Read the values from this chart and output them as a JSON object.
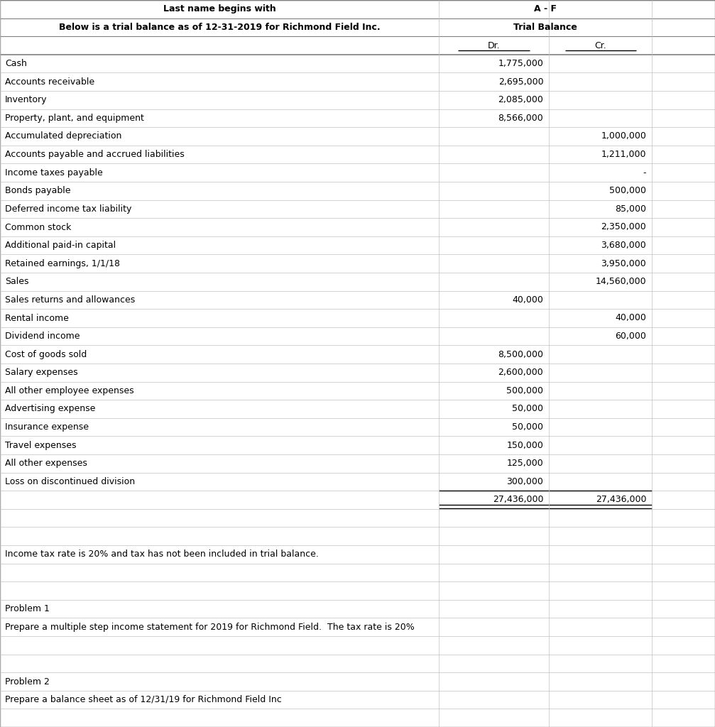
{
  "header_yellow_text": "Last name begins with",
  "header_af_text": "A - F",
  "header_desc_text": "Below is a trial balance as of 12-31-2019 for Richmond Field Inc.",
  "header_trial_balance": "Trial Balance",
  "col_dr": "Dr.",
  "col_cr": "Cr.",
  "rows": [
    {
      "label": "Cash",
      "dr": "1,775,000",
      "cr": ""
    },
    {
      "label": "Accounts receivable",
      "dr": "2,695,000",
      "cr": ""
    },
    {
      "label": "Inventory",
      "dr": "2,085,000",
      "cr": ""
    },
    {
      "label": "Property, plant, and equipment",
      "dr": "8,566,000",
      "cr": ""
    },
    {
      "label": "Accumulated depreciation",
      "dr": "",
      "cr": "1,000,000"
    },
    {
      "label": "Accounts payable and accrued liabilities",
      "dr": "",
      "cr": "1,211,000"
    },
    {
      "label": "Income taxes payable",
      "dr": "",
      "cr": "-"
    },
    {
      "label": "Bonds payable",
      "dr": "",
      "cr": "500,000"
    },
    {
      "label": "Deferred income tax liability",
      "dr": "",
      "cr": "85,000"
    },
    {
      "label": "Common stock",
      "dr": "",
      "cr": "2,350,000"
    },
    {
      "label": "Additional paid-in capital",
      "dr": "",
      "cr": "3,680,000"
    },
    {
      "label": "Retained earnings, 1/1/18",
      "dr": "",
      "cr": "3,950,000"
    },
    {
      "label": "Sales",
      "dr": "",
      "cr": "14,560,000"
    },
    {
      "label": "Sales returns and allowances",
      "dr": "40,000",
      "cr": ""
    },
    {
      "label": "Rental income",
      "dr": "",
      "cr": "40,000"
    },
    {
      "label": "Dividend income",
      "dr": "",
      "cr": "60,000"
    },
    {
      "label": "Cost of goods sold",
      "dr": "8,500,000",
      "cr": ""
    },
    {
      "label": "Salary expenses",
      "dr": "2,600,000",
      "cr": ""
    },
    {
      "label": "All other employee expenses",
      "dr": "500,000",
      "cr": ""
    },
    {
      "label": "Advertising expense",
      "dr": "50,000",
      "cr": ""
    },
    {
      "label": "Insurance expense",
      "dr": "50,000",
      "cr": ""
    },
    {
      "label": "Travel expenses",
      "dr": "150,000",
      "cr": ""
    },
    {
      "label": "All other expenses",
      "dr": "125,000",
      "cr": ""
    },
    {
      "label": "Loss on discontinued division",
      "dr": "300,000",
      "cr": ""
    }
  ],
  "total_dr": "27,436,000",
  "total_cr": "27,436,000",
  "note_row": "Income tax rate is 20% and tax has not been included in trial balance.",
  "problem1_label": "Problem 1",
  "problem1_text": "Prepare a multiple step income statement for 2019 for Richmond Field.  The tax rate is 20%",
  "problem2_label": "Problem 2",
  "problem2_text": "Prepare a balance sheet as of 12/31/19 for Richmond Field Inc",
  "bg_color": "#ffffff",
  "header_yellow_bg": "#ffff00",
  "header_blue_bg": "#d9e1f2",
  "extra_col_bg": "#f2f2f2",
  "grid_color": "#c0c0c0",
  "font_size": 9.0,
  "c0": 0.0,
  "c1": 0.614,
  "c2": 0.768,
  "c3": 0.912,
  "c4": 1.0
}
